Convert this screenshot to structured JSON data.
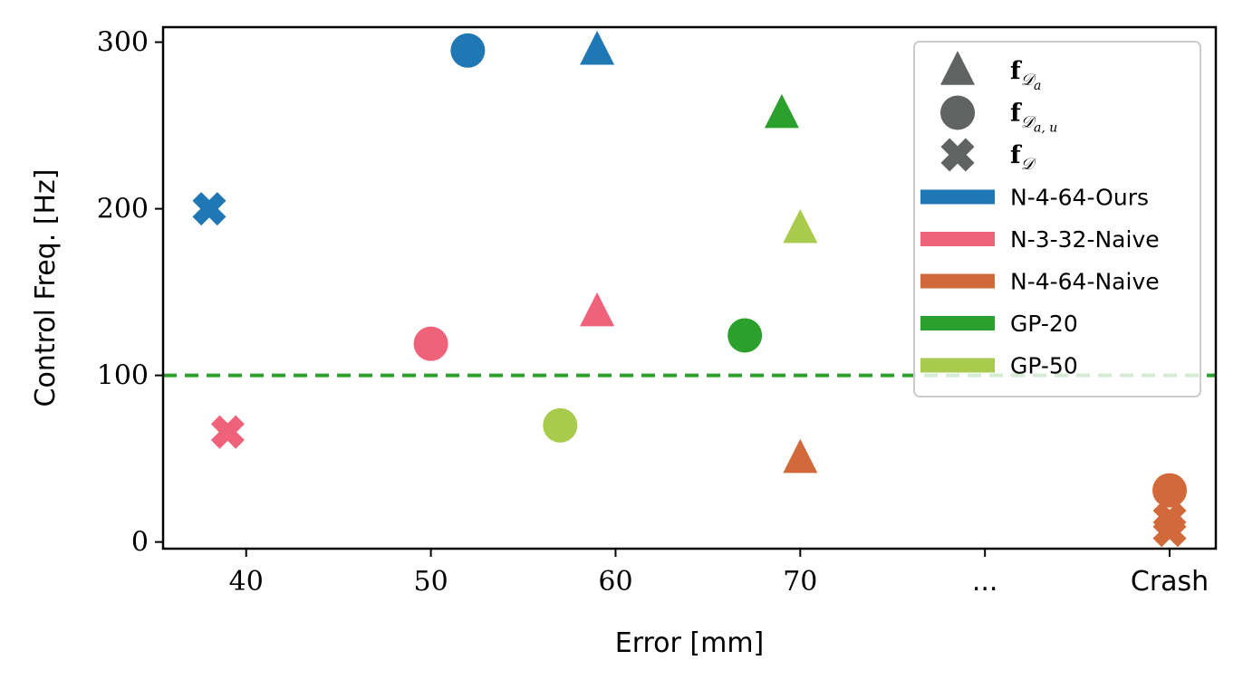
{
  "chart_data": {
    "type": "scatter",
    "xlabel": "Error [mm]",
    "ylabel": "Control Freq. [Hz]",
    "xlim": [
      35.5,
      92.5
    ],
    "ylim": [
      -4,
      309
    ],
    "x_ticks": [
      {
        "value": 40,
        "label": "40"
      },
      {
        "value": 50,
        "label": "50"
      },
      {
        "value": 60,
        "label": "60"
      },
      {
        "value": 70,
        "label": "70"
      },
      {
        "value": 80,
        "label": "..."
      },
      {
        "value": 90,
        "label": "Crash"
      }
    ],
    "y_ticks": [
      {
        "value": 0,
        "label": "0"
      },
      {
        "value": 100,
        "label": "100"
      },
      {
        "value": 200,
        "label": "200"
      },
      {
        "value": 300,
        "label": "300"
      }
    ],
    "reference_line": {
      "y": 100,
      "color": "#2ca02c",
      "style": "dashed"
    },
    "marker_legend": [
      {
        "marker": "triangle",
        "label_main": "f",
        "label_sub": "𝒟",
        "label_subsub": "a"
      },
      {
        "marker": "circle",
        "label_main": "f",
        "label_sub": "𝒟",
        "label_subsub": "a, u"
      },
      {
        "marker": "x",
        "label_main": "f",
        "label_sub": "𝒟",
        "label_subsub": ""
      }
    ],
    "legend_position": "top-right",
    "grid": false,
    "series": [
      {
        "name": "N-4-64-Ours",
        "color": "#1f77b4",
        "points": [
          {
            "marker": "circle",
            "x": 52,
            "y": 295
          },
          {
            "marker": "triangle",
            "x": 59,
            "y": 295
          },
          {
            "marker": "x",
            "x": 38,
            "y": 200
          }
        ]
      },
      {
        "name": "N-3-32-Naive",
        "color": "#f0627a",
        "points": [
          {
            "marker": "circle",
            "x": 50,
            "y": 119
          },
          {
            "marker": "triangle",
            "x": 59,
            "y": 138
          },
          {
            "marker": "x",
            "x": 39,
            "y": 66
          }
        ]
      },
      {
        "name": "N-4-64-Naive",
        "color": "#d2693b",
        "points": [
          {
            "marker": "triangle",
            "x": 70,
            "y": 50
          },
          {
            "marker": "circle",
            "x": 90,
            "y": 31
          },
          {
            "marker": "x",
            "x": 90,
            "y": 14
          },
          {
            "marker": "x",
            "x": 90,
            "y": 7
          }
        ]
      },
      {
        "name": "GP-20",
        "color": "#2ca02c",
        "points": [
          {
            "marker": "triangle",
            "x": 69,
            "y": 257
          },
          {
            "marker": "circle",
            "x": 67,
            "y": 124
          }
        ]
      },
      {
        "name": "GP-50",
        "color": "#a9cb4d",
        "points": [
          {
            "marker": "triangle",
            "x": 70,
            "y": 188
          },
          {
            "marker": "circle",
            "x": 57,
            "y": 70
          }
        ]
      }
    ],
    "legend_marker_color": "#5f6361"
  }
}
